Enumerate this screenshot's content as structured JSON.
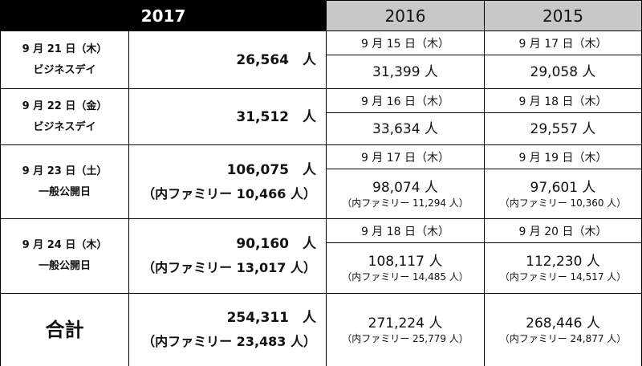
{
  "header": {
    "y2017": "2017",
    "y2016": "2016",
    "y2015": "2015"
  },
  "rows": [
    {
      "day": "9 月 21 日（木）",
      "label": "ビジネスデイ",
      "y2017": {
        "visitors": "26,564　人"
      },
      "y2016": {
        "date": "9 月 15 日（木）",
        "visitors": "31,399 人"
      },
      "y2015": {
        "date": "9 月 17 日（木）",
        "visitors": "29,058 人"
      }
    },
    {
      "day": "9 月 22 日（金）",
      "label": "ビジネスデイ",
      "y2017": {
        "visitors": "31,512　人"
      },
      "y2016": {
        "date": "9 月 16 日（木）",
        "visitors": "33,634 人"
      },
      "y2015": {
        "date": "9 月 18 日（木）",
        "visitors": "29,557 人"
      }
    },
    {
      "day": "9 月 23 日（土）",
      "label": "一般公開日",
      "y2017": {
        "visitors": "106,075　人",
        "family": "（内ファミリー 10,466 人）"
      },
      "y2016": {
        "date": "9 月 17 日（木）",
        "visitors": "98,074 人",
        "family": "（内ファミリー 11,294 人）"
      },
      "y2015": {
        "date": "9 月 19 日（木）",
        "visitors": "97,601 人",
        "family": "（内ファミリー 10,360 人）"
      }
    },
    {
      "day": "9 月 24 日（木）",
      "label": "一般公開日",
      "y2017": {
        "visitors": "90,160　人",
        "family": "（内ファミリー 13,017 人）"
      },
      "y2016": {
        "date": "9 月 18 日（木）",
        "visitors": "108,117 人",
        "family": "（内ファミリー 14,485 人）"
      },
      "y2015": {
        "date": "9 月 20 日（木）",
        "visitors": "112,230 人",
        "family": "（内ファミリー 14,517 人）"
      }
    },
    {
      "label": "合計",
      "y2017": {
        "visitors": "254,311　人",
        "family": "（内ファミリー 23,483 人）"
      },
      "y2016": {
        "visitors": "271,224 人",
        "family": "（内ファミリー 25,779 人）"
      },
      "y2015": {
        "visitors": "268,446 人",
        "family": "（内ファミリー 24,877 人）"
      }
    }
  ]
}
